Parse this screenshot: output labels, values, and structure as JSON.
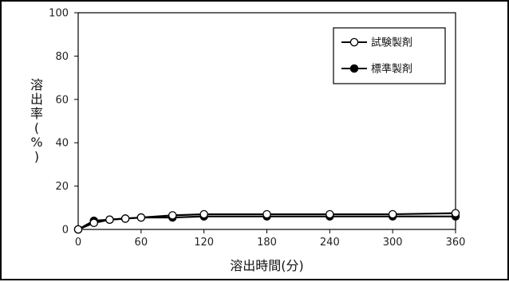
{
  "chart_data": {
    "type": "line",
    "title": "",
    "xlabel": "溶出時間(分)",
    "ylabel": "溶出率(%)",
    "ylabel_chars": [
      "溶",
      "出",
      "率",
      "(",
      "%",
      ")"
    ],
    "xlim": [
      0,
      360
    ],
    "ylim": [
      0,
      100
    ],
    "xticks": [
      0,
      60,
      120,
      180,
      240,
      300,
      360
    ],
    "yticks": [
      0,
      20,
      40,
      60,
      80,
      100
    ],
    "grid": false,
    "legend_position": "top-right",
    "series": [
      {
        "name": "試験製剤",
        "marker": "open-circle",
        "color": "#000000",
        "x": [
          0,
          15,
          30,
          45,
          60,
          90,
          120,
          180,
          240,
          300,
          360
        ],
        "y": [
          0,
          3,
          4.5,
          5,
          5.5,
          6.5,
          7,
          7,
          7,
          7,
          7.5
        ]
      },
      {
        "name": "標準製剤",
        "marker": "filled-circle",
        "color": "#000000",
        "x": [
          0,
          15,
          30,
          45,
          60,
          90,
          120,
          180,
          240,
          300,
          360
        ],
        "y": [
          0,
          4,
          4.5,
          5,
          5.5,
          5.5,
          6,
          6,
          6,
          6,
          6
        ]
      }
    ]
  }
}
